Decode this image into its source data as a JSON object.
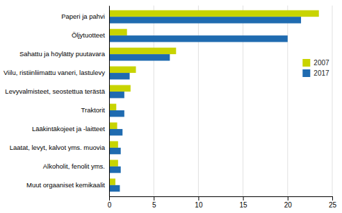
{
  "chart_data": {
    "type": "bar",
    "orientation": "horizontal",
    "categories": [
      "Muut orgaaniset kemikaalit",
      "Alkoholit, fenolit yms.",
      "Laatat, levyt, kalvot yms. muovia",
      "Lääkintäkojeet ja -laitteet",
      "Traktorit",
      "Levyvalmisteet, seostettua terästä",
      "Viilu, ristiinliimattu vaneri, lastulevy",
      "Sahattu ja höylätty puutavara",
      "Öljytuotteet",
      "Paperi ja pahvi"
    ],
    "series": [
      {
        "name": "2007",
        "color": "#c8d400",
        "values": [
          0.7,
          1.0,
          1.0,
          0.9,
          0.8,
          2.4,
          3.0,
          7.5,
          2.0,
          23.5
        ]
      },
      {
        "name": "2017",
        "color": "#1f6bb0",
        "values": [
          1.2,
          1.3,
          1.3,
          1.5,
          1.7,
          1.7,
          2.3,
          6.8,
          20.0,
          21.5
        ]
      }
    ],
    "xlim": [
      0,
      25
    ],
    "xticks": [
      0,
      5,
      10,
      15,
      20,
      25
    ],
    "grid": true,
    "legend": "upper right"
  }
}
